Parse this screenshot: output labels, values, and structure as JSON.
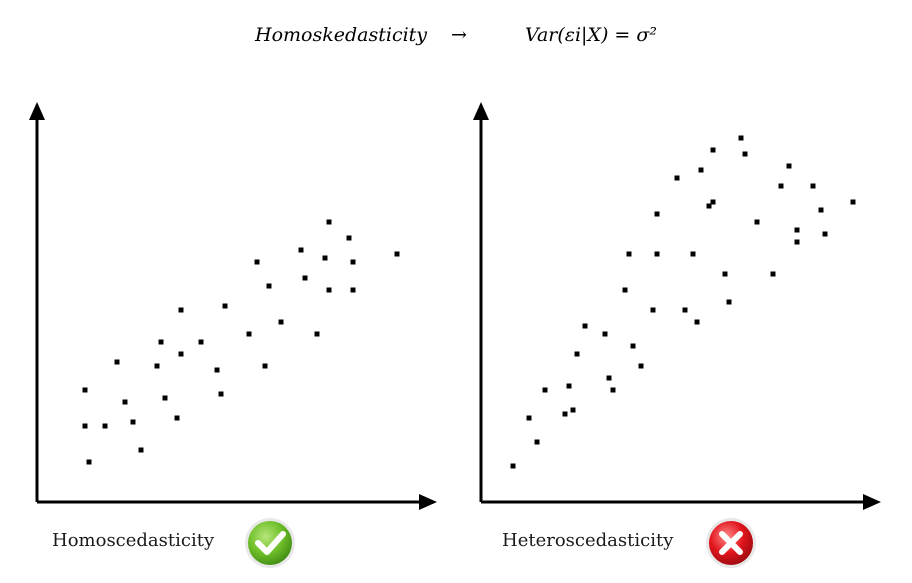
{
  "formula": {
    "left": "Homoskedasticity",
    "arrow": "→",
    "right": "Var(εi|X) = σ²"
  },
  "chart_data": [
    {
      "type": "scatter",
      "title": "",
      "xlabel": "",
      "ylabel": "",
      "xlim": [
        0,
        100
      ],
      "ylim": [
        0,
        100
      ],
      "grid": false,
      "caption": "Homoscedasticity",
      "badge": "check-icon",
      "badge_color": "#5cab1f",
      "points": [
        [
          12,
          28
        ],
        [
          12,
          19
        ],
        [
          13,
          10
        ],
        [
          17,
          19
        ],
        [
          20,
          35
        ],
        [
          22,
          25
        ],
        [
          24,
          20
        ],
        [
          26,
          13
        ],
        [
          30,
          34
        ],
        [
          31,
          40
        ],
        [
          32,
          26
        ],
        [
          35,
          21
        ],
        [
          36,
          37
        ],
        [
          36,
          48
        ],
        [
          41,
          40
        ],
        [
          45,
          33
        ],
        [
          46,
          27
        ],
        [
          47,
          49
        ],
        [
          53,
          42
        ],
        [
          55,
          60
        ],
        [
          57,
          34
        ],
        [
          58,
          54
        ],
        [
          61,
          45
        ],
        [
          66,
          63
        ],
        [
          67,
          56
        ],
        [
          70,
          42
        ],
        [
          72,
          61
        ],
        [
          73,
          70
        ],
        [
          73,
          53
        ],
        [
          78,
          66
        ],
        [
          79,
          60
        ],
        [
          79,
          53
        ],
        [
          90,
          62
        ]
      ]
    },
    {
      "type": "scatter",
      "title": "",
      "xlabel": "",
      "ylabel": "",
      "xlim": [
        0,
        100
      ],
      "ylim": [
        0,
        100
      ],
      "grid": false,
      "caption": "Heteroscedasticity",
      "badge": "cross-icon",
      "badge_color": "#d0101a",
      "points": [
        [
          8,
          9
        ],
        [
          12,
          21
        ],
        [
          14,
          15
        ],
        [
          16,
          28
        ],
        [
          21,
          22
        ],
        [
          22,
          29
        ],
        [
          23,
          23
        ],
        [
          24,
          37
        ],
        [
          26,
          44
        ],
        [
          31,
          42
        ],
        [
          32,
          31
        ],
        [
          33,
          28
        ],
        [
          36,
          53
        ],
        [
          37,
          62
        ],
        [
          38,
          39
        ],
        [
          40,
          34
        ],
        [
          43,
          48
        ],
        [
          44,
          72
        ],
        [
          44,
          62
        ],
        [
          49,
          81
        ],
        [
          51,
          48
        ],
        [
          53,
          62
        ],
        [
          54,
          45
        ],
        [
          55,
          83
        ],
        [
          57,
          74
        ],
        [
          58,
          88
        ],
        [
          58,
          75
        ],
        [
          61,
          57
        ],
        [
          62,
          50
        ],
        [
          65,
          91
        ],
        [
          66,
          87
        ],
        [
          69,
          70
        ],
        [
          73,
          57
        ],
        [
          75,
          79
        ],
        [
          77,
          84
        ],
        [
          79,
          65
        ],
        [
          79,
          68
        ],
        [
          83,
          79
        ],
        [
          85,
          73
        ],
        [
          86,
          67
        ],
        [
          93,
          75
        ]
      ]
    }
  ]
}
